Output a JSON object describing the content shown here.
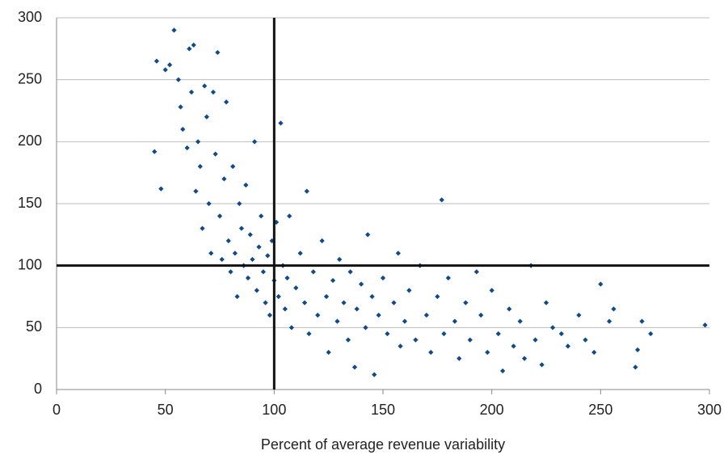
{
  "chart_data": {
    "type": "scatter",
    "x_label": "Percent of average revenue variability",
    "color": "#0f4a8a",
    "xlim": [
      0,
      300
    ],
    "xticks": [
      0,
      50,
      100,
      150,
      200,
      250,
      300
    ],
    "ylim": [
      0,
      300
    ],
    "yticks": [
      0,
      50,
      100,
      150,
      200,
      250,
      300
    ],
    "grid": true,
    "reference_lines": {
      "x": 100,
      "y": 100
    },
    "x": [
      45,
      46,
      48,
      50,
      52,
      54,
      56,
      57,
      58,
      60,
      61,
      62,
      63,
      64,
      65,
      66,
      67,
      68,
      69,
      70,
      71,
      72,
      73,
      74,
      75,
      76,
      77,
      78,
      79,
      80,
      81,
      82,
      83,
      84,
      85,
      86,
      87,
      88,
      89,
      90,
      91,
      92,
      93,
      94,
      95,
      96,
      97,
      98,
      99,
      100,
      101,
      102,
      103,
      104,
      105,
      106,
      107,
      108,
      110,
      112,
      114,
      115,
      116,
      118,
      120,
      122,
      124,
      125,
      127,
      129,
      130,
      132,
      134,
      135,
      137,
      138,
      140,
      142,
      143,
      145,
      146,
      148,
      150,
      152,
      155,
      157,
      158,
      160,
      162,
      165,
      167,
      170,
      172,
      175,
      177,
      178,
      180,
      183,
      185,
      188,
      190,
      193,
      195,
      198,
      200,
      203,
      205,
      208,
      210,
      213,
      215,
      218,
      220,
      223,
      225,
      228,
      232,
      235,
      240,
      243,
      247,
      250,
      254,
      256,
      266,
      267,
      269,
      273,
      298
    ],
    "y": [
      192,
      265,
      162,
      258,
      262,
      290,
      250,
      228,
      210,
      195,
      275,
      240,
      278,
      160,
      200,
      180,
      130,
      245,
      220,
      150,
      110,
      240,
      190,
      272,
      140,
      105,
      170,
      232,
      120,
      95,
      180,
      110,
      75,
      150,
      130,
      100,
      165,
      90,
      125,
      105,
      200,
      80,
      115,
      140,
      95,
      70,
      108,
      60,
      120,
      88,
      135,
      75,
      215,
      100,
      65,
      90,
      140,
      50,
      82,
      110,
      70,
      160,
      45,
      95,
      60,
      120,
      75,
      30,
      88,
      55,
      105,
      70,
      40,
      95,
      18,
      65,
      85,
      50,
      125,
      75,
      12,
      60,
      90,
      45,
      70,
      110,
      35,
      55,
      80,
      40,
      100,
      60,
      30,
      75,
      153,
      45,
      90,
      55,
      25,
      70,
      40,
      95,
      60,
      30,
      80,
      45,
      15,
      65,
      35,
      55,
      25,
      100,
      40,
      20,
      70,
      50,
      45,
      35,
      60,
      40,
      30,
      85,
      55,
      65,
      18,
      32,
      55,
      45,
      52
    ]
  }
}
